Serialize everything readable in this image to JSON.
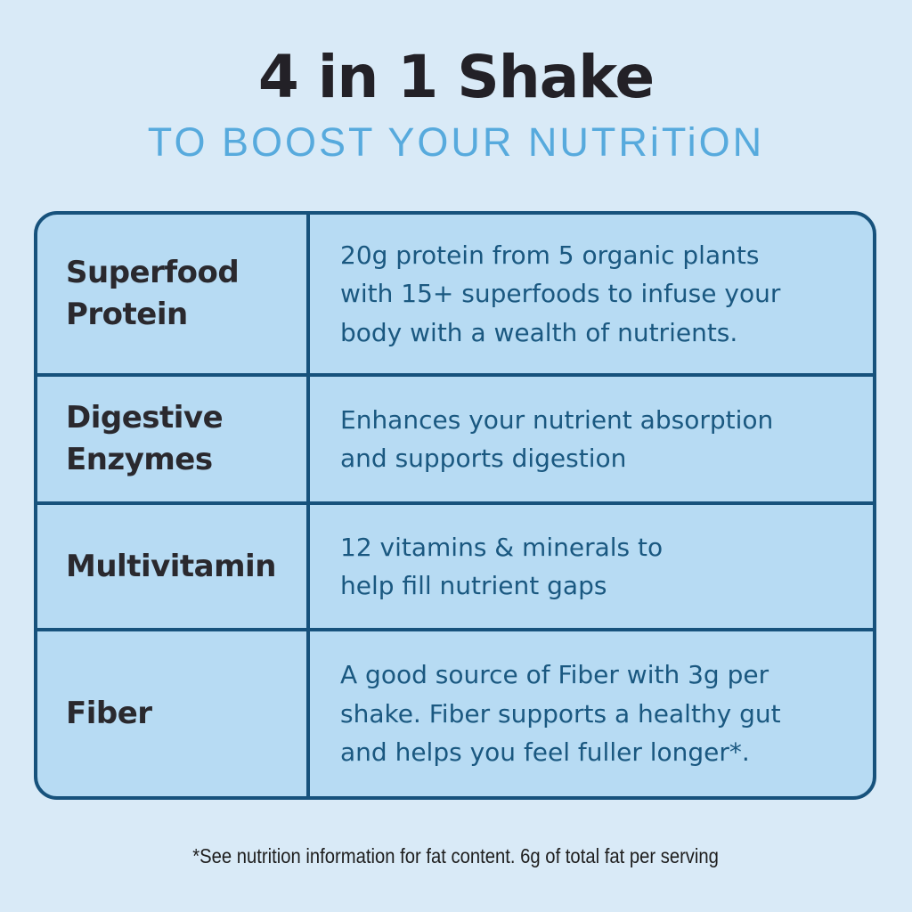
{
  "header": {
    "title": "4 in 1 Shake",
    "subtitle": "TO BOOST YOUR NUTRiTiON"
  },
  "table": {
    "rows": [
      {
        "label": "Superfood\nProtein",
        "description": "20g protein from 5 organic plants\nwith 15+ superfoods to infuse your\nbody with a wealth of nutrients."
      },
      {
        "label": "Digestive\nEnzymes",
        "description": "Enhances your nutrient absorption\nand supports digestion"
      },
      {
        "label": "Multivitamin",
        "description": "12 vitamins & minerals to\nhelp fill nutrient gaps"
      },
      {
        "label": "Fiber",
        "description": "A good source of Fiber with 3g per\nshake. Fiber supports a healthy gut\nand helps you feel fuller longer*."
      }
    ]
  },
  "footer": {
    "note": "*See nutrition information for fat content. 6g of total fat per serving"
  },
  "colors": {
    "background": "#d9eaf7",
    "table_fill": "#b7dbf3",
    "table_border": "#17527c",
    "title_text": "#232127",
    "subtitle_text": "#57aadd",
    "label_text": "#2a292e",
    "description_text": "#1a5880",
    "footnote_text": "#1e1e1e"
  }
}
